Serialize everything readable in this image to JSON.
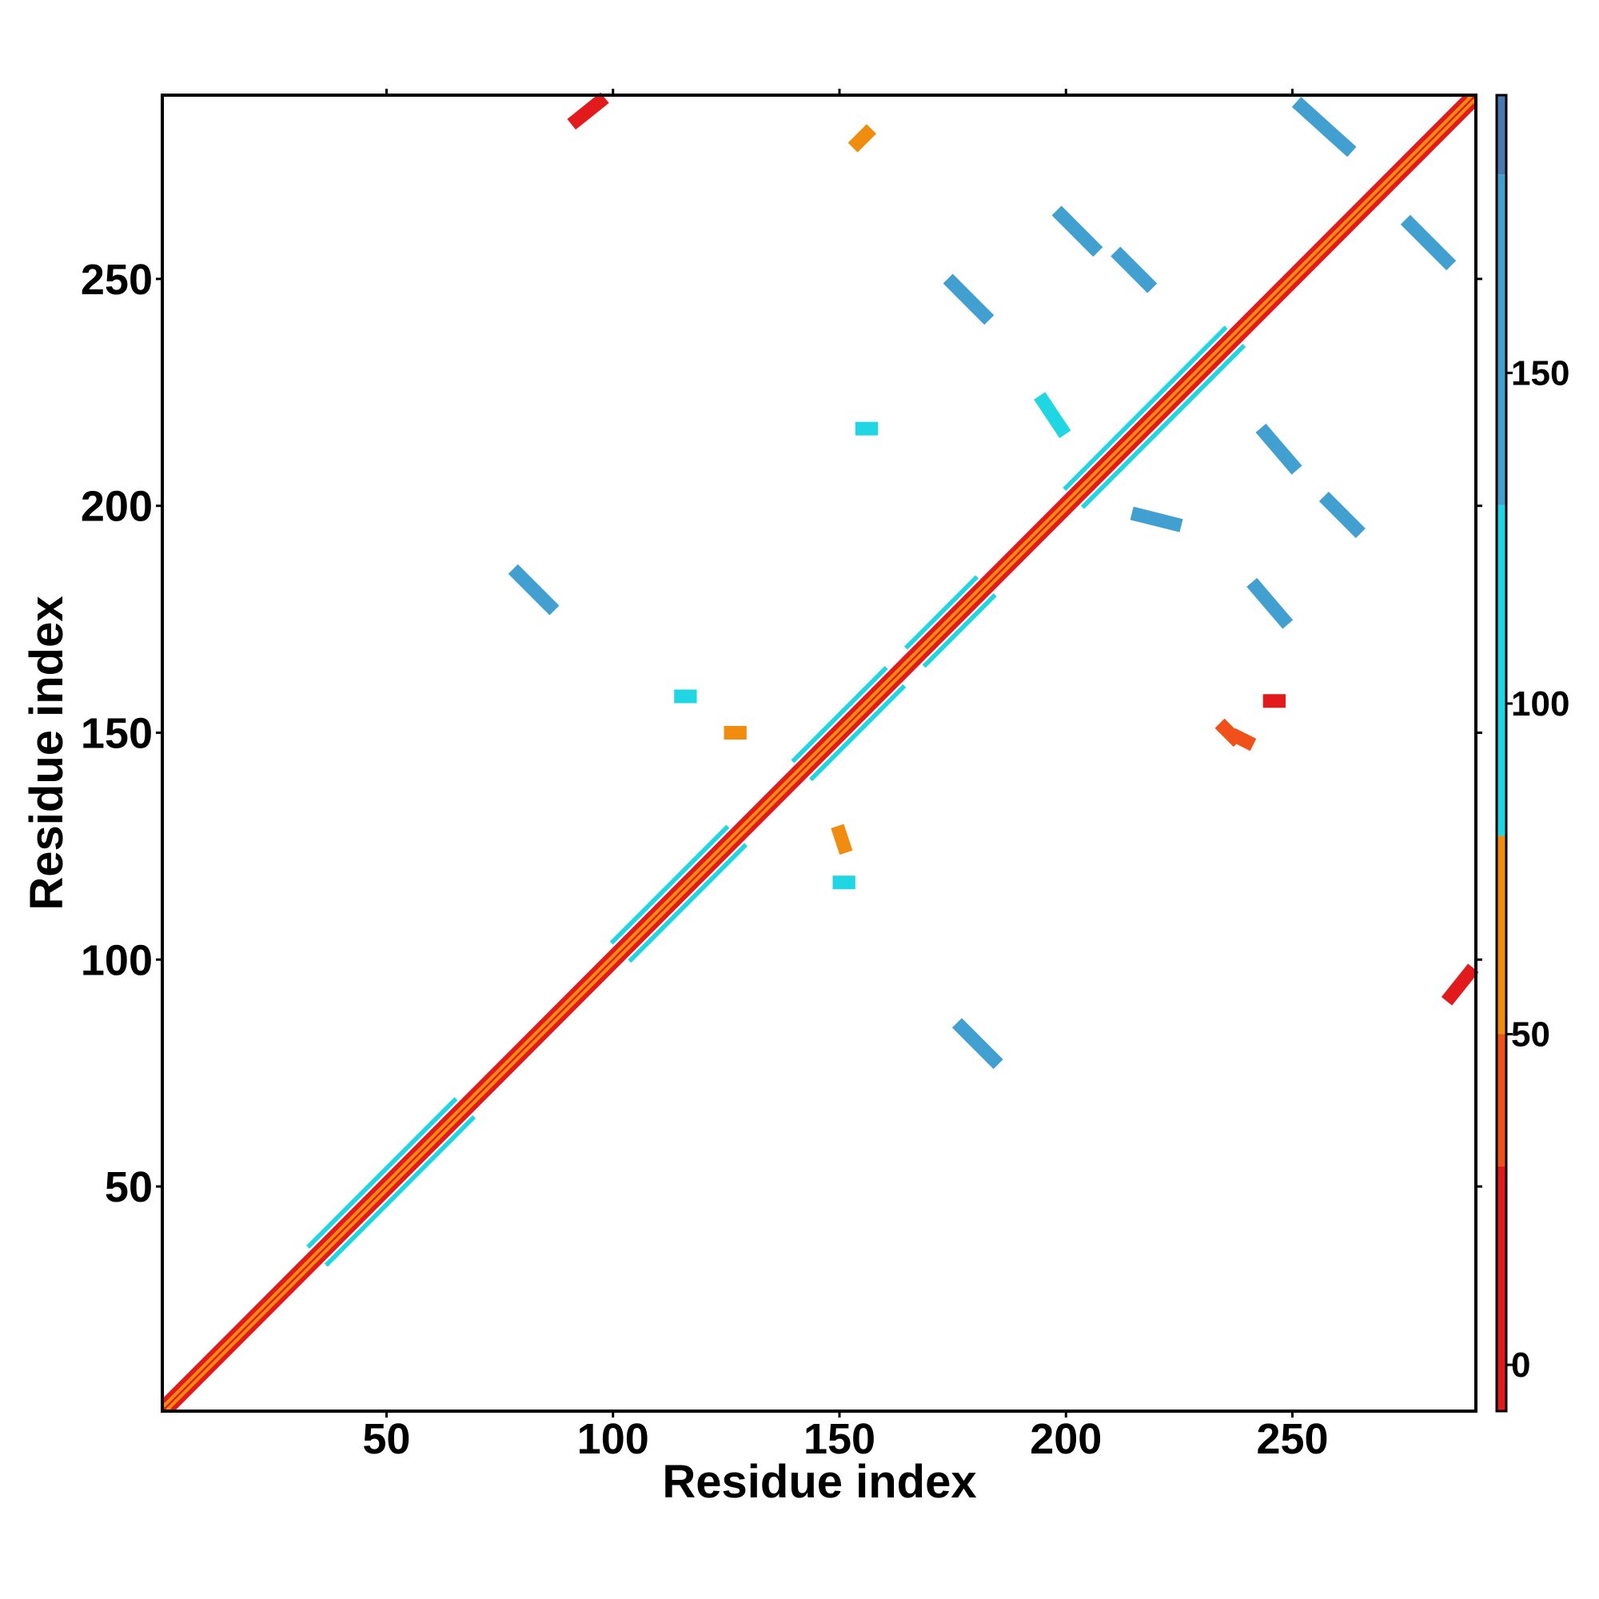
{
  "chart_data": {
    "type": "heatmap",
    "x_label": "Residue index",
    "y_label": "Residue index",
    "xlim": [
      0.5,
      290.5
    ],
    "ylim": [
      0.5,
      290.5
    ],
    "xticks": [
      50,
      100,
      150,
      200,
      250
    ],
    "yticks": [
      50,
      100,
      150,
      200,
      250
    ],
    "colorbar": {
      "breaks": [
        -7,
        30,
        50,
        80,
        130,
        180,
        192
      ],
      "colors": [
        "#e31a1c",
        "#f0501a",
        "#f08c10",
        "#1fd6e2",
        "#42a0d0",
        "#4a78b0"
      ],
      "ticks": [
        0,
        50,
        100,
        150
      ]
    },
    "segments": [
      {
        "x": [
          1,
          290
        ],
        "y": [
          1,
          290
        ],
        "value": 20
      },
      {
        "x": [
          1,
          289
        ],
        "y": [
          2,
          290
        ],
        "value": 60
      },
      {
        "x": [
          2,
          290
        ],
        "y": [
          1,
          289
        ],
        "value": 60
      },
      {
        "x": [
          1,
          288
        ],
        "y": [
          3,
          290
        ],
        "value": 5
      },
      {
        "x": [
          3,
          290
        ],
        "y": [
          1,
          288
        ],
        "value": 5
      },
      {
        "x": [
          33,
          65
        ],
        "y": [
          37,
          69
        ],
        "value": 100
      },
      {
        "x": [
          37,
          69
        ],
        "y": [
          33,
          65
        ],
        "value": 100
      },
      {
        "x": [
          100,
          125
        ],
        "y": [
          104,
          129
        ],
        "value": 100
      },
      {
        "x": [
          104,
          129
        ],
        "y": [
          100,
          125
        ],
        "value": 100
      },
      {
        "x": [
          140,
          160
        ],
        "y": [
          144,
          164
        ],
        "value": 100
      },
      {
        "x": [
          144,
          164
        ],
        "y": [
          140,
          160
        ],
        "value": 100
      },
      {
        "x": [
          165,
          180
        ],
        "y": [
          169,
          184
        ],
        "value": 100
      },
      {
        "x": [
          169,
          184
        ],
        "y": [
          165,
          180
        ],
        "value": 100
      },
      {
        "x": [
          200,
          235
        ],
        "y": [
          204,
          239
        ],
        "value": 100
      },
      {
        "x": [
          204,
          239
        ],
        "y": [
          200,
          235
        ],
        "value": 100
      },
      {
        "x": [
          92,
          97
        ],
        "y": [
          285,
          289
        ],
        "value": 5
      },
      {
        "x": [
          285,
          289
        ],
        "y": [
          92,
          97
        ],
        "value": 5
      },
      {
        "x": [
          252,
          262
        ],
        "y": [
          288,
          279
        ],
        "value": 160
      },
      {
        "x": [
          199,
          206
        ],
        "y": [
          264,
          257
        ],
        "value": 160
      },
      {
        "x": [
          175,
          182
        ],
        "y": [
          249,
          242
        ],
        "value": 160
      },
      {
        "x": [
          212,
          218
        ],
        "y": [
          255,
          249
        ],
        "value": 160
      },
      {
        "x": [
          276,
          284
        ],
        "y": [
          262,
          254
        ],
        "value": 160
      },
      {
        "x": [
          244,
          250
        ],
        "y": [
          216,
          209
        ],
        "value": 160
      },
      {
        "x": [
          258,
          264
        ],
        "y": [
          201,
          195
        ],
        "value": 160
      },
      {
        "x": [
          242,
          248
        ],
        "y": [
          182,
          175
        ],
        "value": 160
      },
      {
        "x": [
          79,
          86
        ],
        "y": [
          185,
          178
        ],
        "value": 160
      },
      {
        "x": [
          177,
          184
        ],
        "y": [
          85,
          78
        ],
        "value": 160
      },
      {
        "x": [
          195,
          199
        ],
        "y": [
          223,
          217
        ],
        "value": 100
      },
      {
        "x": [
          216,
          224
        ],
        "y": [
          198,
          196
        ],
        "value": 160
      },
      {
        "x": [
          155,
          157
        ],
        "y": [
          217,
          217
        ],
        "value": 100
      },
      {
        "x": [
          150,
          151
        ],
        "y": [
          128,
          125
        ],
        "value": 60
      },
      {
        "x": [
          126,
          128
        ],
        "y": [
          150,
          150
        ],
        "value": 60
      },
      {
        "x": [
          238,
          240
        ],
        "y": [
          149,
          148
        ],
        "value": 40
      },
      {
        "x": [
          245,
          247
        ],
        "y": [
          157,
          157
        ],
        "value": 5
      },
      {
        "x": [
          115,
          117
        ],
        "y": [
          158,
          158
        ],
        "value": 100
      },
      {
        "x": [
          150,
          152
        ],
        "y": [
          117,
          117
        ],
        "value": 100
      },
      {
        "x": [
          235,
          237
        ],
        "y": [
          151,
          149
        ],
        "value": 40
      },
      {
        "x": [
          154,
          156
        ],
        "y": [
          280,
          282
        ],
        "value": 60
      }
    ]
  }
}
